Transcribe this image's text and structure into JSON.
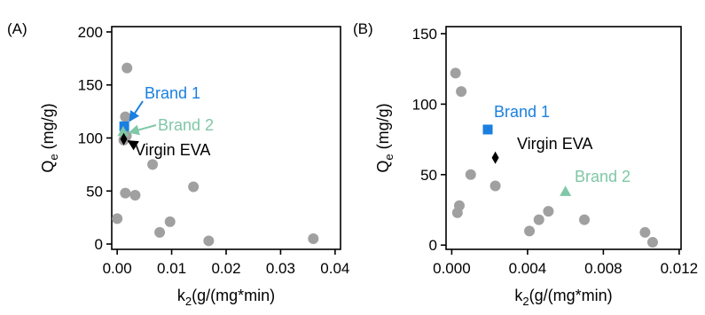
{
  "colors": {
    "axis": "#000000",
    "points": "#a0a0a0",
    "brand1": "#1a7fe0",
    "brand2": "#7fc7a6",
    "virgin": "#000000"
  },
  "chart_data": [
    {
      "type": "scatter",
      "panel_label": "(A)",
      "xlabel": "k2(g/(mg*min)",
      "ylabel": "Qe (mg/g)",
      "xlim": [
        -0.001,
        0.041
      ],
      "ylim": [
        -5,
        205
      ],
      "xticks": [
        0.0,
        0.01,
        0.02,
        0.03,
        0.04
      ],
      "xtick_labels": [
        "0.00",
        "0.01",
        "0.02",
        "0.03",
        "0.04"
      ],
      "yticks": [
        0,
        50,
        100,
        150,
        200
      ],
      "ytick_labels": [
        "0",
        "50",
        "100",
        "150",
        "200"
      ],
      "grid": false,
      "series": [
        {
          "marker": "circle",
          "x": [
            0.0018,
            0.0015,
            0.0017,
            0.0012,
            0.0,
            0.0015,
            0.0033,
            0.0065,
            0.014,
            0.0097,
            0.0078,
            0.0168,
            0.036
          ],
          "y": [
            166,
            120,
            102,
            98,
            24,
            48,
            46,
            75,
            54,
            21,
            11,
            3,
            5
          ]
        },
        {
          "name": "Brand 1",
          "marker": "square",
          "x": [
            0.0013
          ],
          "y": [
            111
          ]
        },
        {
          "name": "Brand 2",
          "marker": "triangle",
          "x": [
            0.0011
          ],
          "y": [
            106
          ]
        },
        {
          "name": "Virgin EVA",
          "marker": "diamond",
          "x": [
            0.0012
          ],
          "y": [
            99
          ]
        }
      ],
      "annotations": [
        "Brand 1",
        "Brand 2",
        "Virgin EVA"
      ]
    },
    {
      "type": "scatter",
      "panel_label": "(B)",
      "xlabel": "k2(g/(mg*min)",
      "ylabel": "Qe (mg/g)",
      "xlim": [
        -0.0003,
        0.0121
      ],
      "ylim": [
        -3,
        155
      ],
      "xticks": [
        0.0,
        0.004,
        0.008,
        0.012
      ],
      "xtick_labels": [
        "0.000",
        "0.004",
        "0.008",
        "0.012"
      ],
      "yticks": [
        0,
        50,
        100,
        150
      ],
      "ytick_labels": [
        "0",
        "50",
        "100",
        "150"
      ],
      "grid": false,
      "series": [
        {
          "marker": "circle",
          "x": [
            0.0002,
            0.0005,
            0.001,
            0.0023,
            0.0003,
            0.0004,
            0.0046,
            0.0051,
            0.0041,
            0.007,
            0.0102,
            0.0106
          ],
          "y": [
            122,
            109,
            50,
            42,
            23,
            28,
            18,
            24,
            10,
            18,
            9,
            2
          ]
        },
        {
          "name": "Brand 1",
          "marker": "square",
          "x": [
            0.0019
          ],
          "y": [
            82
          ]
        },
        {
          "name": "Virgin EVA",
          "marker": "diamond",
          "x": [
            0.0023
          ],
          "y": [
            62
          ]
        },
        {
          "name": "Brand 2",
          "marker": "triangle",
          "x": [
            0.006
          ],
          "y": [
            38
          ]
        }
      ],
      "annotations": [
        "Brand 1",
        "Virgin EVA",
        "Brand 2"
      ]
    }
  ]
}
